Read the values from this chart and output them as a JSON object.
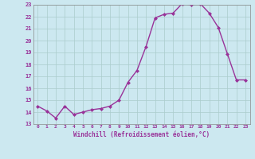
{
  "x": [
    0,
    1,
    2,
    3,
    4,
    5,
    6,
    7,
    8,
    9,
    10,
    11,
    12,
    13,
    14,
    15,
    16,
    17,
    18,
    19,
    20,
    21,
    22,
    23
  ],
  "y": [
    14.5,
    14.1,
    13.5,
    14.5,
    13.8,
    14.0,
    14.2,
    14.3,
    14.5,
    15.0,
    16.5,
    17.5,
    19.5,
    21.9,
    22.2,
    22.3,
    23.1,
    23.0,
    23.1,
    22.3,
    21.1,
    18.9,
    16.7,
    16.7
  ],
  "ylim": [
    13,
    23
  ],
  "yticks": [
    13,
    14,
    15,
    16,
    17,
    18,
    19,
    20,
    21,
    22,
    23
  ],
  "xticks": [
    0,
    1,
    2,
    3,
    4,
    5,
    6,
    7,
    8,
    9,
    10,
    11,
    12,
    13,
    14,
    15,
    16,
    17,
    18,
    19,
    20,
    21,
    22,
    23
  ],
  "xlabel": "Windchill (Refroidissement éolien,°C)",
  "line_color": "#993399",
  "marker": "D",
  "bg_color": "#cce8f0",
  "grid_color": "#aacccc",
  "tick_color": "#993399",
  "label_color": "#993399",
  "marker_size": 2,
  "line_width": 1.0
}
